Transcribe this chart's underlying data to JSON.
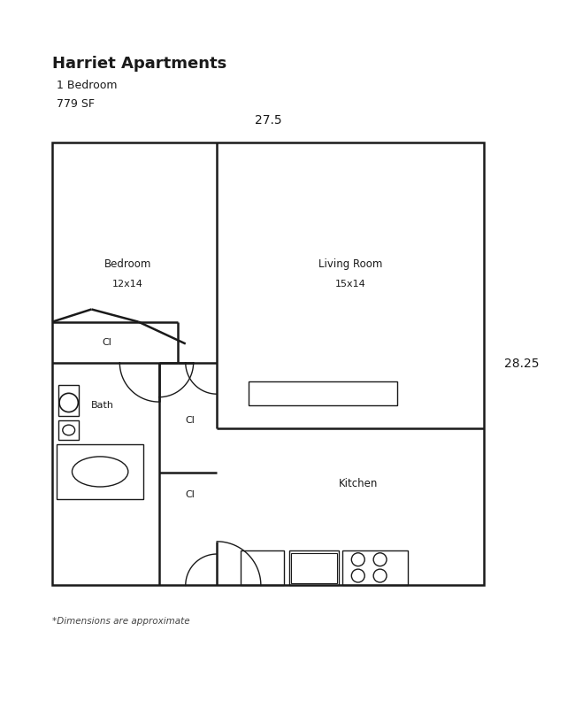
{
  "title": "Harriet Apartments",
  "subtitle1": "1 Bedroom",
  "subtitle2": "779 SF",
  "dim_top": "27.5",
  "dim_right": "28.25",
  "footnote": "*Dimensions are approximate",
  "bg_color": "#ffffff",
  "wall_color": "#1a1a1a",
  "wall_lw": 1.8,
  "thin_lw": 1.0,
  "fig_w": 6.5,
  "fig_h": 8.0,
  "dpi": 100
}
